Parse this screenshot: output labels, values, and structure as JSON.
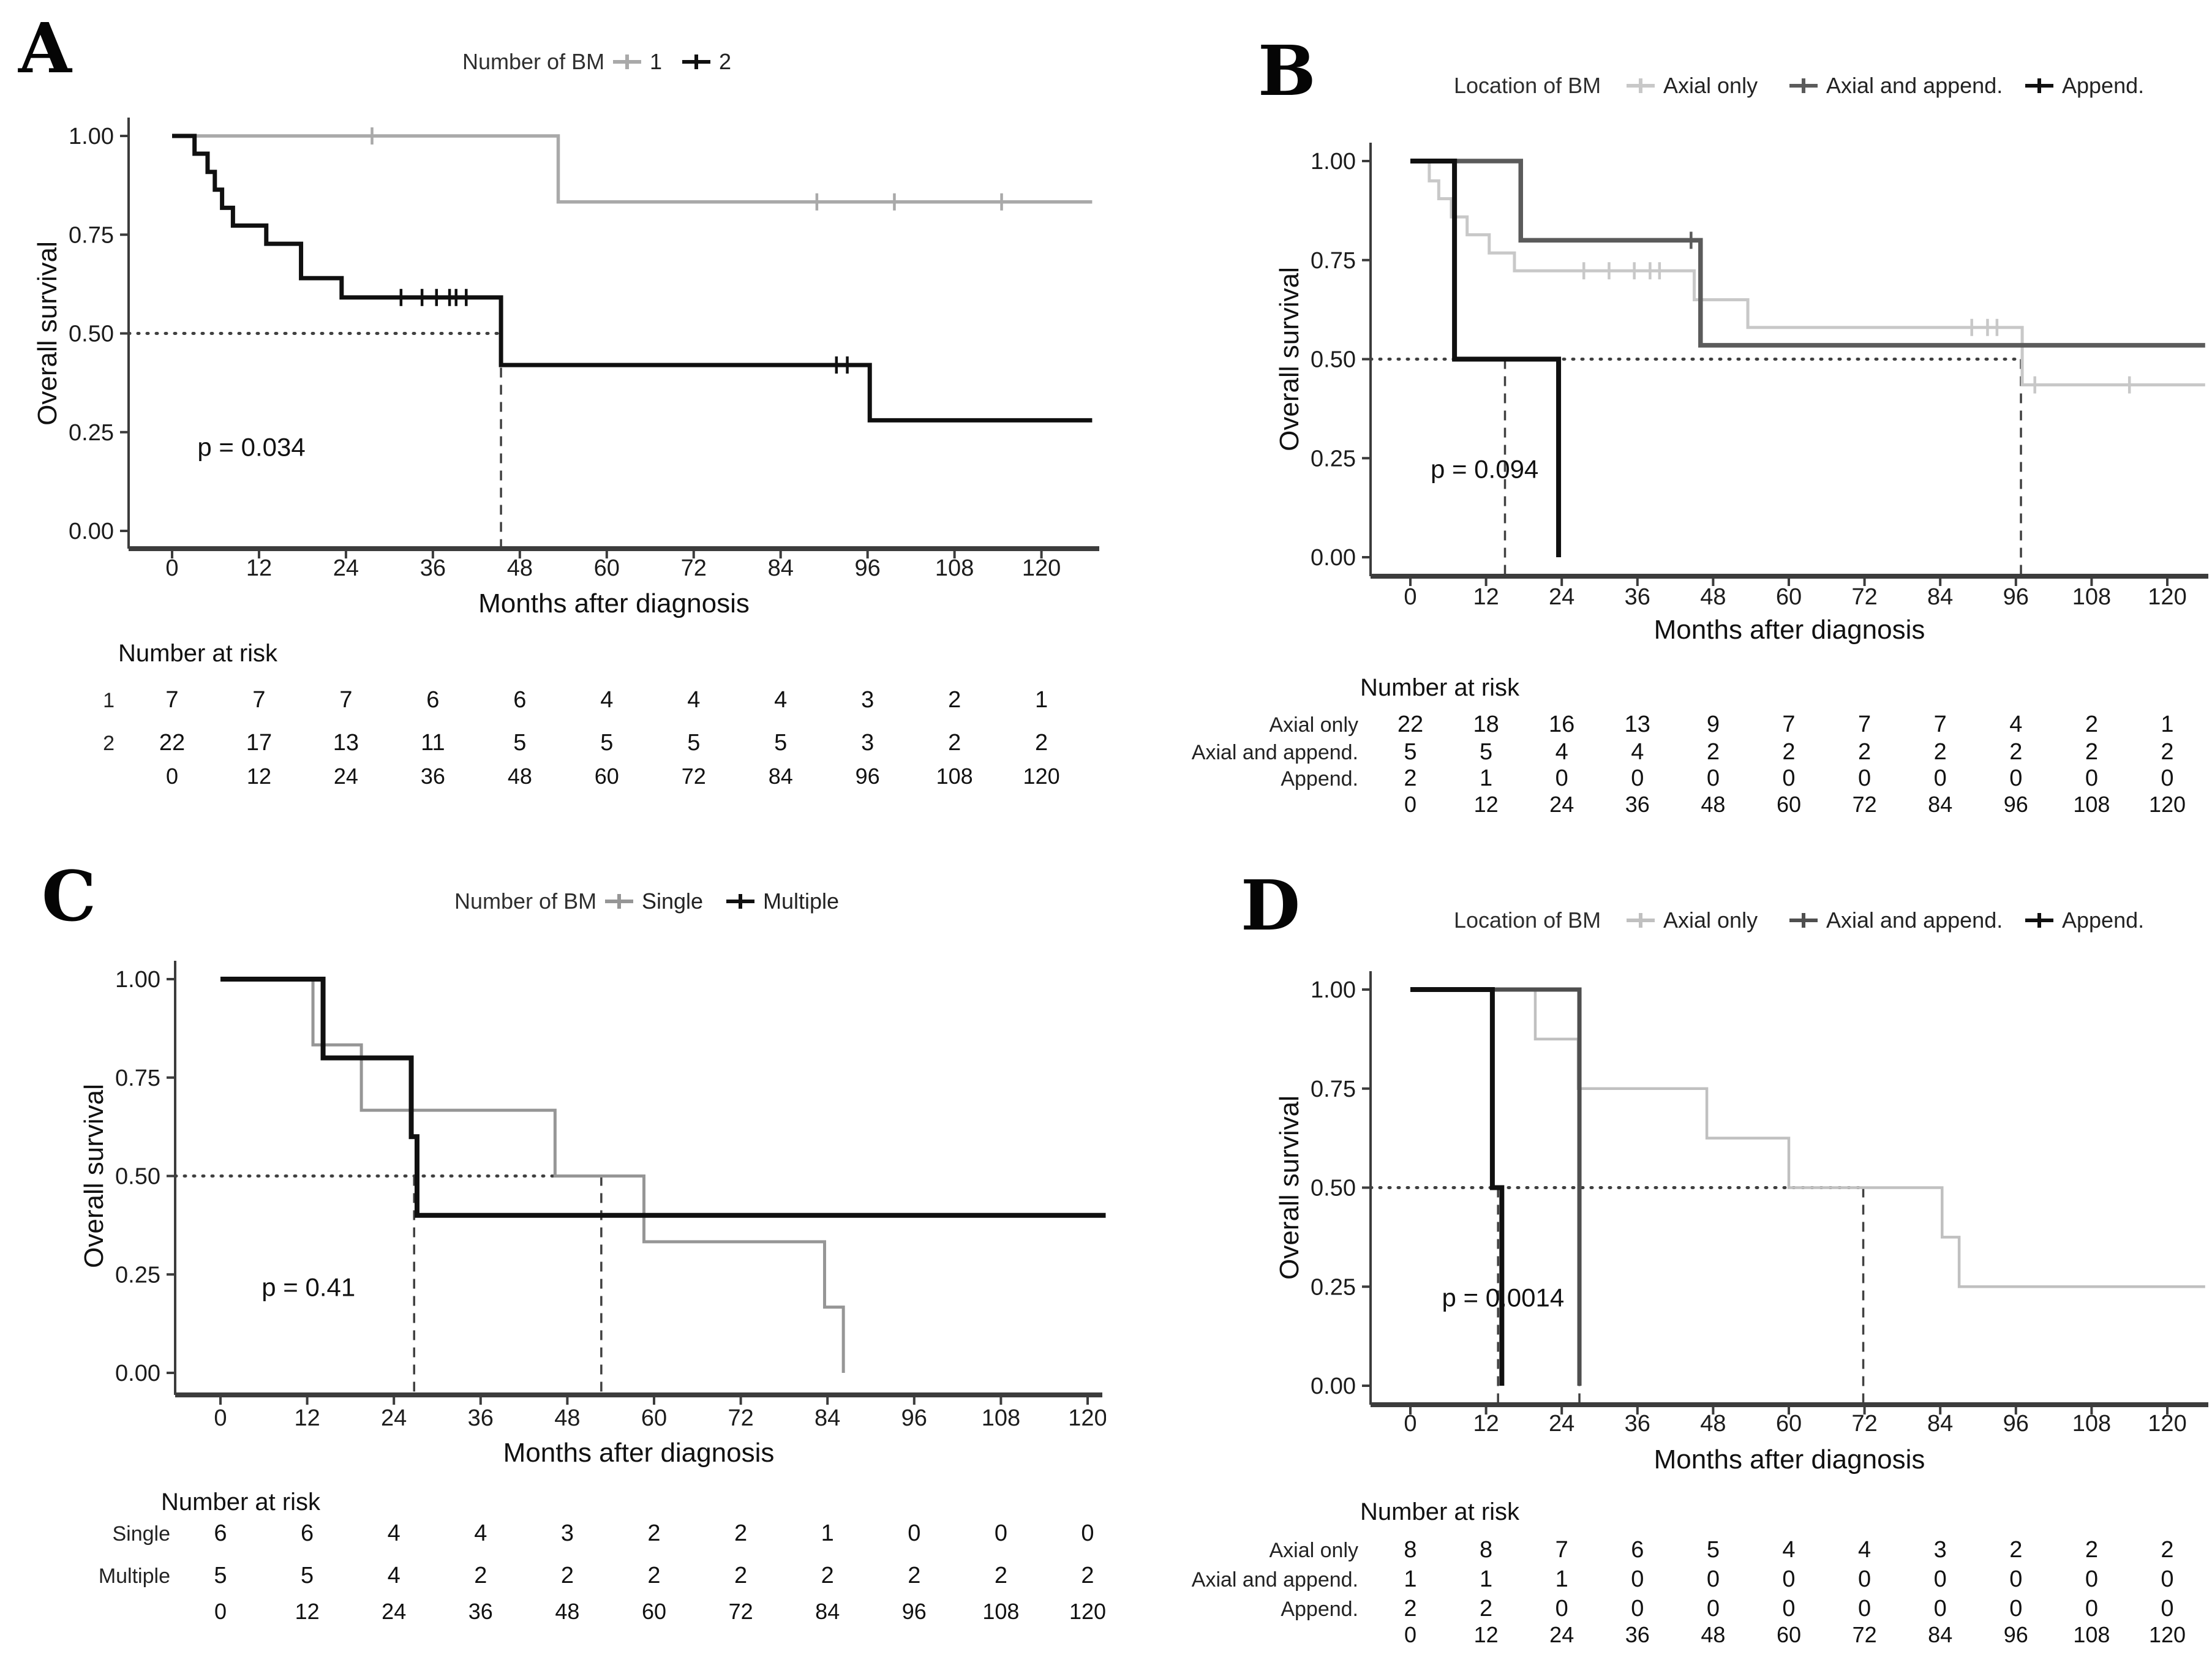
{
  "figure": {
    "background": "#ffffff"
  },
  "chart_data": {
    "type": "line",
    "subtype": "kaplan-meier-survival",
    "xlabel": "Months after diagnosis",
    "ylabel": "Overall survival",
    "x_ticks": [
      0,
      12,
      24,
      36,
      48,
      60,
      72,
      84,
      96,
      108,
      120
    ],
    "y_ticks": [
      {
        "v": 1.0,
        "label": "1.00"
      },
      {
        "v": 0.75,
        "label": "0.75"
      },
      {
        "v": 0.5,
        "label": "0.50"
      },
      {
        "v": 0.25,
        "label": "0.25"
      },
      {
        "v": 0.0,
        "label": "0.00"
      }
    ],
    "xlim": [
      0,
      127
    ],
    "ylim": [
      0,
      1
    ],
    "grid": false,
    "legend_position": "top",
    "panels": [
      {
        "letter": "A",
        "legend_title": "Number of BM",
        "p_value_label": "p = 0.034",
        "p_pos": {
          "month": 3.5,
          "survival": 0.19
        },
        "series": [
          {
            "name": "1",
            "color": "#a9a9a9",
            "width": 5.5,
            "steps": [
              [
                0,
                1
              ],
              [
                53.3,
                0.833
              ]
            ],
            "end": 127,
            "censors": [
              [
                27.6,
                1
              ],
              [
                89,
                0.833
              ],
              [
                99.7,
                0.833
              ],
              [
                114.5,
                0.833
              ]
            ]
          },
          {
            "name": "2",
            "color": "#101010",
            "width": 7,
            "steps": [
              [
                0,
                1
              ],
              [
                3.1,
                0.955
              ],
              [
                4.9,
                0.909
              ],
              [
                5.9,
                0.864
              ],
              [
                6.9,
                0.818
              ],
              [
                8.4,
                0.773
              ],
              [
                13,
                0.727
              ],
              [
                17.8,
                0.64
              ],
              [
                23.4,
                0.591
              ],
              [
                45.4,
                0.42
              ],
              [
                96.3,
                0.28
              ]
            ],
            "end": 127,
            "censors": [
              [
                31.6,
                0.591
              ],
              [
                34.5,
                0.591
              ],
              [
                36.5,
                0.591
              ],
              [
                38.3,
                0.591
              ],
              [
                39.2,
                0.591
              ],
              [
                40.6,
                0.591
              ],
              [
                91.7,
                0.42
              ],
              [
                93.2,
                0.42
              ]
            ]
          }
        ],
        "median_h_end": 45.4,
        "median_v": [
          45.4
        ],
        "risk_table": {
          "title": "Number at risk",
          "rows": [
            {
              "label": "1",
              "values": [
                7,
                7,
                7,
                6,
                6,
                4,
                4,
                4,
                3,
                2,
                1
              ]
            },
            {
              "label": "2",
              "values": [
                22,
                17,
                13,
                11,
                5,
                5,
                5,
                5,
                3,
                2,
                2
              ]
            }
          ],
          "times": [
            0,
            12,
            24,
            36,
            48,
            60,
            72,
            84,
            96,
            108,
            120
          ]
        },
        "layout": {
          "x0": 281,
          "pm": 11.83,
          "axis_x": 210,
          "right": 1795,
          "y_top": 222,
          "y_bottom": 867,
          "axis_y": 896,
          "xtick_y": 940,
          "xlabel_y": 1000,
          "letter_x": 30,
          "letter_y": 118,
          "legend_x": 755,
          "legend_y": 113,
          "risk_title_x": 193,
          "risk_title_y": 1080,
          "risk_label_x": 187,
          "rows_y": [
            1155,
            1225
          ],
          "time_y": 1280
        }
      },
      {
        "letter": "B",
        "legend_title": "Location of BM",
        "p_value_label": "p = 0.094",
        "p_pos": {
          "month": 3.2,
          "survival": 0.2
        },
        "series": [
          {
            "name": "Axial only",
            "color": "#c8c8c8",
            "width": 5,
            "steps": [
              [
                0,
                1
              ],
              [
                3,
                0.95
              ],
              [
                4.5,
                0.905
              ],
              [
                6.5,
                0.859
              ],
              [
                9,
                0.814
              ],
              [
                12.5,
                0.768
              ],
              [
                16.5,
                0.723
              ],
              [
                45,
                0.65
              ],
              [
                53.5,
                0.58
              ],
              [
                97,
                0.435
              ]
            ],
            "end": 126,
            "censors": [
              [
                27.5,
                0.723
              ],
              [
                31.5,
                0.723
              ],
              [
                35.5,
                0.723
              ],
              [
                38,
                0.723
              ],
              [
                39.5,
                0.723
              ],
              [
                89,
                0.58
              ],
              [
                91.5,
                0.58
              ],
              [
                93,
                0.58
              ],
              [
                99,
                0.435
              ],
              [
                114,
                0.435
              ]
            ]
          },
          {
            "name": "Axial and append.",
            "color": "#5b5b5b",
            "width": 7.5,
            "steps": [
              [
                0,
                1
              ],
              [
                17.5,
                0.8
              ],
              [
                46,
                0.535
              ]
            ],
            "end": 126,
            "censors": [
              [
                44.5,
                0.8
              ]
            ]
          },
          {
            "name": "Append.",
            "color": "#101010",
            "width": 8,
            "steps": [
              [
                0,
                1
              ],
              [
                7,
                0.5
              ],
              [
                23.5,
                0
              ]
            ],
            "end": 23.5,
            "censors": []
          }
        ],
        "median_h_end": 96.8,
        "median_v": [
          15,
          96.8
        ],
        "risk_table": {
          "title": "Number at risk",
          "rows": [
            {
              "label": "Axial only",
              "values": [
                22,
                18,
                16,
                13,
                9,
                7,
                7,
                7,
                4,
                2,
                1
              ]
            },
            {
              "label": "Axial and append.",
              "values": [
                5,
                5,
                4,
                4,
                2,
                2,
                2,
                2,
                2,
                2,
                2
              ]
            },
            {
              "label": "Append.",
              "values": [
                2,
                1,
                0,
                0,
                0,
                0,
                0,
                0,
                0,
                0,
                0
              ]
            }
          ],
          "times": [
            0,
            12,
            24,
            36,
            48,
            60,
            72,
            84,
            96,
            108,
            120
          ]
        },
        "layout": {
          "x0": 497,
          "pm": 10.3,
          "axis_x": 432,
          "right": 1800,
          "y_top": 263,
          "y_bottom": 910,
          "axis_y": 941,
          "xtick_y": 987,
          "xlabel_y": 1043,
          "letter_x": 248,
          "letter_y": 155,
          "legend_x": 568,
          "legend_y": 152,
          "risk_title_x": 415,
          "risk_title_y": 1136,
          "risk_label_x": 412,
          "rows_y": [
            1195,
            1240,
            1283
          ],
          "time_y": 1326
        }
      },
      {
        "letter": "C",
        "legend_title": "Number of BM",
        "p_value_label": "p = 0.41",
        "p_pos": {
          "month": 5.7,
          "survival": 0.195
        },
        "series": [
          {
            "name": "Single",
            "color": "#969696",
            "width": 5,
            "steps": [
              [
                0,
                1
              ],
              [
                12.8,
                0.833
              ],
              [
                19.5,
                0.667
              ],
              [
                46.3,
                0.5
              ],
              [
                58.6,
                0.333
              ],
              [
                83.6,
                0.167
              ],
              [
                86.2,
                0
              ]
            ],
            "end": 86.2,
            "censors": []
          },
          {
            "name": "Multiple",
            "color": "#101010",
            "width": 8,
            "steps": [
              [
                0,
                1
              ],
              [
                14.2,
                0.8
              ],
              [
                26.4,
                0.6
              ],
              [
                27.2,
                0.4
              ]
            ],
            "end": 122.5,
            "censors": []
          }
        ],
        "median_h_end": 52.7,
        "median_v": [
          26.8,
          52.7
        ],
        "risk_table": {
          "title": "Number at risk",
          "rows": [
            {
              "label": "Single",
              "values": [
                6,
                6,
                4,
                4,
                3,
                2,
                2,
                1,
                0,
                0,
                0
              ]
            },
            {
              "label": "Multiple",
              "values": [
                5,
                5,
                4,
                2,
                2,
                2,
                2,
                2,
                2,
                2,
                2
              ]
            }
          ],
          "times": [
            0,
            12,
            24,
            36,
            48,
            60,
            72,
            84,
            96,
            108,
            120
          ]
        },
        "layout": {
          "x0": 360,
          "pm": 11.8,
          "axis_x": 286,
          "right": 1800,
          "y_top": 246,
          "y_bottom": 889,
          "axis_y": 925,
          "xtick_y": 975,
          "xlabel_y": 1034,
          "letter_x": 68,
          "letter_y": 150,
          "legend_x": 742,
          "legend_y": 131,
          "risk_title_x": 263,
          "risk_title_y": 1113,
          "risk_label_x": 278,
          "rows_y": [
            1163,
            1232
          ],
          "time_y": 1291
        }
      },
      {
        "letter": "D",
        "legend_title": "Location of BM",
        "p_value_label": "p = 0.0014",
        "p_pos": {
          "month": 5,
          "survival": 0.2
        },
        "series": [
          {
            "name": "Axial only",
            "color": "#c0c0c0",
            "width": 4.5,
            "steps": [
              [
                0,
                1
              ],
              [
                19.8,
                0.875
              ],
              [
                26.6,
                0.75
              ],
              [
                47,
                0.625
              ],
              [
                60,
                0.5
              ],
              [
                84.3,
                0.375
              ],
              [
                87,
                0.25
              ]
            ],
            "end": 126,
            "censors": []
          },
          {
            "name": "Axial and append.",
            "color": "#4f4f4f",
            "width": 7,
            "steps": [
              [
                0,
                1
              ],
              [
                26.8,
                0
              ]
            ],
            "end": 26.8,
            "censors": []
          },
          {
            "name": "Append.",
            "color": "#101010",
            "width": 8,
            "steps": [
              [
                0,
                1
              ],
              [
                13,
                0.5
              ],
              [
                14.5,
                0
              ]
            ],
            "end": 14.5,
            "censors": []
          }
        ],
        "median_h_end": 71.8,
        "median_v": [
          13.9,
          26.8,
          71.8
        ],
        "risk_table": {
          "title": "Number at risk",
          "rows": [
            {
              "label": "Axial only",
              "values": [
                8,
                8,
                7,
                6,
                5,
                4,
                4,
                3,
                2,
                2,
                2
              ]
            },
            {
              "label": "Axial and append.",
              "values": [
                1,
                1,
                1,
                0,
                0,
                0,
                0,
                0,
                0,
                0,
                0
              ]
            },
            {
              "label": "Append.",
              "values": [
                2,
                2,
                0,
                0,
                0,
                0,
                0,
                0,
                0,
                0,
                0
              ]
            }
          ],
          "times": [
            0,
            12,
            24,
            36,
            48,
            60,
            72,
            84,
            96,
            108,
            120
          ]
        },
        "layout": {
          "x0": 497,
          "pm": 10.3,
          "axis_x": 432,
          "right": 1800,
          "y_top": 263,
          "y_bottom": 910,
          "axis_y": 941,
          "xtick_y": 984,
          "xlabel_y": 1045,
          "letter_x": 220,
          "letter_y": 165,
          "legend_x": 568,
          "legend_y": 162,
          "risk_title_x": 415,
          "risk_title_y": 1129,
          "risk_label_x": 412,
          "rows_y": [
            1190,
            1238,
            1286
          ],
          "time_y": 1329
        }
      }
    ]
  }
}
